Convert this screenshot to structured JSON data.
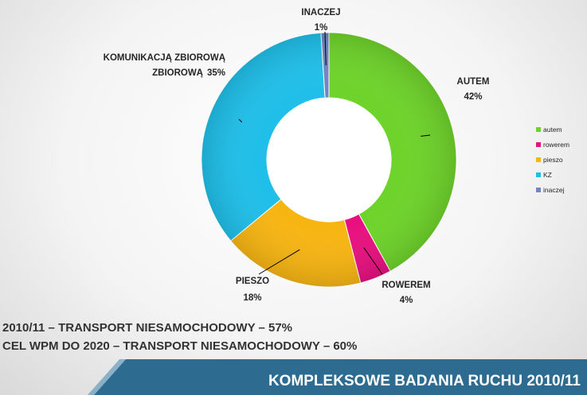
{
  "chart_data": {
    "type": "pie",
    "categories": [
      "autem",
      "rowerem",
      "pieszo",
      "KZ",
      "inaczej"
    ],
    "values": [
      42,
      4,
      18,
      35,
      1
    ],
    "slice_labels": [
      {
        "name": "AUTEM",
        "percent": "42%"
      },
      {
        "name": "ROWEREM",
        "percent": "4%"
      },
      {
        "name": "PIESZO",
        "percent": "18%"
      },
      {
        "name": "KOMUNIKACJĄ ZBIOROWĄ",
        "percent": "35%"
      },
      {
        "name": "INACZEJ",
        "percent": "1%"
      }
    ],
    "colors": [
      "#6ed32a",
      "#e8107f",
      "#f7b512",
      "#1fbfe9",
      "#6f86c2"
    ],
    "donut": true,
    "legend": {
      "placement": "right",
      "entries": [
        "autem",
        "rowerem",
        "pieszo",
        "KZ",
        "inaczej"
      ]
    }
  },
  "summary": {
    "line1": "2010/11 – TRANSPORT NIESAMOCHODOWY – 57%",
    "line2": "CEL WPM DO 2020 – TRANSPORT NIESAMOCHODOWY – 60%"
  },
  "footer": {
    "title": "KOMPLEKSOWE BADANIA RUCHU 2010/11",
    "color": "#2e6b90"
  }
}
